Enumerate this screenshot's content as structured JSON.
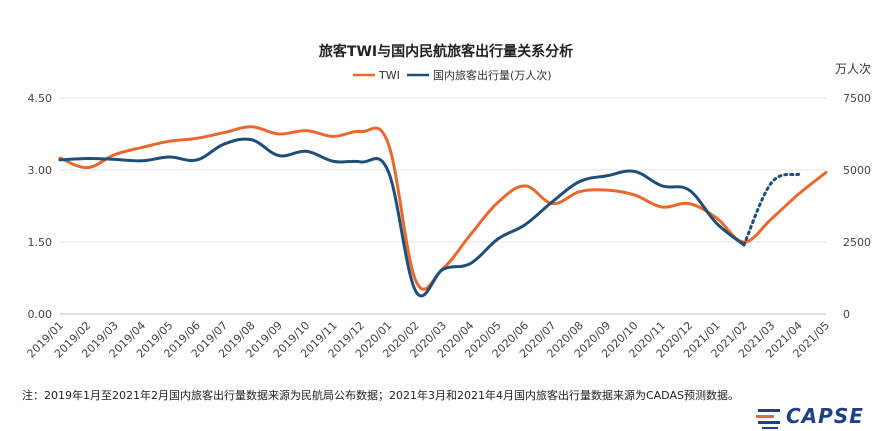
{
  "chart_data": {
    "type": "line",
    "title": "旅客TWI与国内民航旅客出行量关系分析",
    "categories": [
      "2019/01",
      "2019/02",
      "2019/03",
      "2019/04",
      "2019/05",
      "2019/06",
      "2019/07",
      "2019/08",
      "2019/09",
      "2019/10",
      "2019/11",
      "2019/12",
      "2020/01",
      "2020/02",
      "2020/03",
      "2020/04",
      "2020/05",
      "2020/06",
      "2020/07",
      "2020/08",
      "2020/09",
      "2020/10",
      "2020/11",
      "2020/12",
      "2021/01",
      "2021/02",
      "2021/03",
      "2021/04",
      "2021/05"
    ],
    "left_axis": {
      "min": 0,
      "max": 4.5,
      "ticks": [
        "0.00",
        "1.50",
        "3.00",
        "4.50"
      ]
    },
    "right_axis": {
      "min": 0,
      "max": 7500,
      "ticks": [
        "0",
        "2500",
        "5000",
        "7500"
      ],
      "unit": "万人次"
    },
    "grid": true,
    "legend_position": "top",
    "series": [
      {
        "name": "TWI",
        "axis": "left",
        "color": "#e8692e",
        "values": [
          3.25,
          3.05,
          3.32,
          3.47,
          3.6,
          3.66,
          3.78,
          3.9,
          3.75,
          3.82,
          3.7,
          3.8,
          3.55,
          0.7,
          0.95,
          1.65,
          2.32,
          2.67,
          2.3,
          2.55,
          2.58,
          2.48,
          2.23,
          2.3,
          2.0,
          1.5,
          1.98,
          2.5,
          2.95
        ]
      },
      {
        "name": "国内旅客出行量(万人次)",
        "axis": "right",
        "color": "#1f4e79",
        "values": [
          5350,
          5400,
          5370,
          5320,
          5450,
          5350,
          5900,
          6050,
          5500,
          5650,
          5300,
          5280,
          4950,
          800,
          1550,
          1750,
          2600,
          3100,
          3900,
          4600,
          4800,
          4950,
          4450,
          4300,
          3150,
          2400,
          null,
          null,
          null
        ],
        "forecast_values": [
          null,
          null,
          null,
          null,
          null,
          null,
          null,
          null,
          null,
          null,
          null,
          null,
          null,
          null,
          null,
          null,
          null,
          null,
          null,
          null,
          null,
          null,
          null,
          null,
          null,
          2400,
          4550,
          4850,
          null
        ]
      }
    ]
  },
  "note": "注：2019年1月至2021年2月国内旅客出行量数据来源为民航局公布数据；2021年3月和2021年4月国内旅客出行量数据来源为CADAS预测数据。",
  "logo": {
    "text": "CAPSE",
    "color": "#1f3f86",
    "accent": "#e8692e"
  }
}
